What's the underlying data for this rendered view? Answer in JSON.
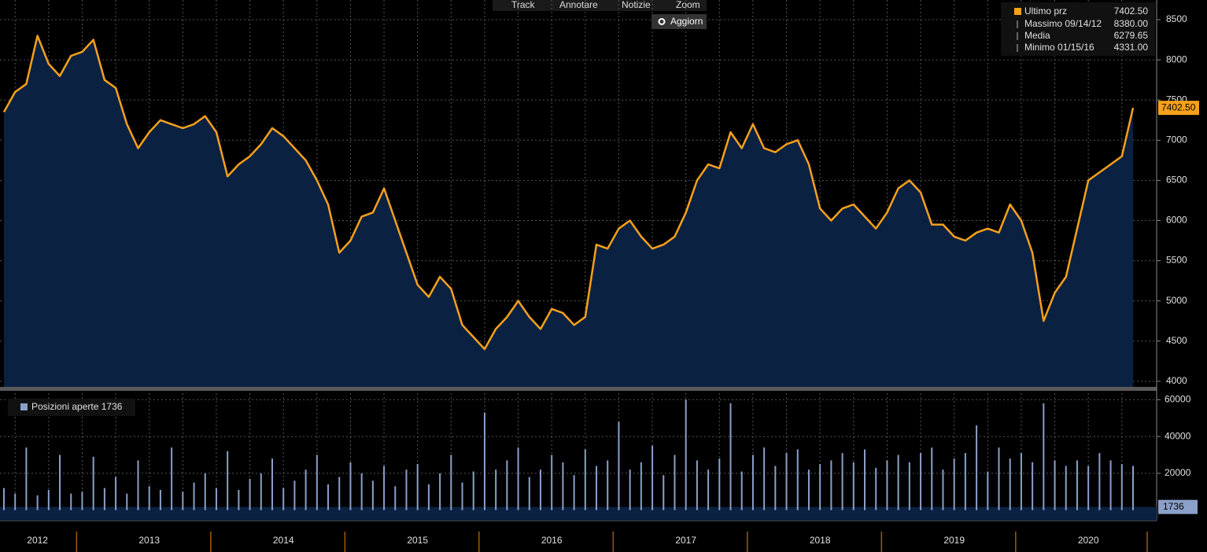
{
  "toolbar": [
    "Track",
    "Annotare",
    "Notizie",
    "Zoom",
    "Aggiorn"
  ],
  "chart_data": [
    {
      "type": "line",
      "categories": [
        null,
        null,
        null,
        "2012",
        null,
        null,
        null,
        null,
        null,
        null,
        null,
        null,
        null,
        "2013",
        null,
        null,
        null,
        null,
        null,
        null,
        null,
        null,
        null,
        null,
        null,
        "2014",
        null,
        null,
        null,
        null,
        null,
        null,
        null,
        null,
        null,
        null,
        null,
        "2015",
        null,
        null,
        null,
        null,
        null,
        null,
        null,
        null,
        null,
        null,
        null,
        "2016",
        null,
        null,
        null,
        null,
        null,
        null,
        null,
        null,
        null,
        null,
        null,
        "2017",
        null,
        null,
        null,
        null,
        null,
        null,
        null,
        null,
        null,
        null,
        null,
        "2018",
        null,
        null,
        null,
        null,
        null,
        null,
        null,
        null,
        null,
        null,
        null,
        "2019",
        null,
        null,
        null,
        null,
        null,
        null,
        null,
        null,
        null,
        null,
        null,
        "2020",
        null,
        null,
        null,
        null
      ],
      "series": [
        {
          "name": "Ultimo prz",
          "color": "#f7a11a",
          "values": [
            7350,
            7600,
            7700,
            8300,
            7950,
            7800,
            8050,
            8100,
            8250,
            7750,
            7650,
            7200,
            6900,
            7100,
            7250,
            7200,
            7150,
            7200,
            7300,
            7100,
            6550,
            6700,
            6800,
            6950,
            7150,
            7050,
            6900,
            6750,
            6500,
            6200,
            5600,
            5750,
            6050,
            6100,
            6400,
            6000,
            5600,
            5200,
            5050,
            5300,
            5150,
            4700,
            4550,
            4400,
            4650,
            4800,
            5000,
            4800,
            4650,
            4900,
            4850,
            4700,
            4800,
            5700,
            5650,
            5900,
            6000,
            5800,
            5650,
            5700,
            5800,
            6100,
            6500,
            6700,
            6650,
            7100,
            6900,
            7200,
            6900,
            6850,
            6950,
            7000,
            6700,
            6150,
            6000,
            6150,
            6200,
            6050,
            5900,
            6100,
            6400,
            6500,
            6350,
            5950,
            5950,
            5800,
            5750,
            5850,
            5900,
            5850,
            6200,
            6000,
            5600,
            4750,
            5100,
            5300,
            5900,
            6500,
            6600,
            6700,
            6800,
            7402.5
          ]
        }
      ],
      "last_label": "7402.50",
      "stats": [
        {
          "name": "Massimo",
          "date": "09/14/12",
          "value_label": "8380.00"
        },
        {
          "name": "Media",
          "value_label": "6279.65"
        },
        {
          "name": "Minimo",
          "date": "01/15/16",
          "value_label": "4331.00"
        }
      ],
      "ylim": [
        3930,
        8745
      ],
      "yticks": [
        4000,
        4500,
        5000,
        5500,
        6000,
        6500,
        7000,
        7500,
        8000,
        8500
      ],
      "grid": true
    },
    {
      "type": "bar",
      "series": [
        {
          "name": "Posizioni aperte",
          "color": "#8aa0c8",
          "values": [
            12000,
            9000,
            34000,
            8000,
            11000,
            30000,
            9000,
            10000,
            29000,
            12000,
            18000,
            9000,
            27000,
            13000,
            11000,
            34000,
            10000,
            15000,
            20000,
            12000,
            32000,
            11000,
            17000,
            20000,
            28000,
            12000,
            16000,
            22000,
            30000,
            14000,
            18000,
            26000,
            20000,
            16000,
            24000,
            13000,
            22000,
            25000,
            14000,
            20000,
            30000,
            15000,
            21000,
            53000,
            22000,
            27000,
            34000,
            18000,
            22000,
            30000,
            26000,
            19000,
            33000,
            24000,
            27000,
            48000,
            22000,
            26000,
            35000,
            19000,
            30000,
            60000,
            27000,
            22000,
            28000,
            58000,
            21000,
            30000,
            34000,
            24000,
            31000,
            33000,
            22000,
            25000,
            27000,
            31000,
            26000,
            33000,
            23000,
            27000,
            30000,
            26000,
            31000,
            34000,
            22000,
            28000,
            31000,
            46000,
            21000,
            34000,
            28000,
            31000,
            26000,
            58000,
            27000,
            24000,
            27000,
            24000,
            31000,
            27000,
            25000,
            24000
          ]
        }
      ],
      "current": 1736,
      "ylim": [
        -5650,
        64800
      ],
      "yticks": [
        20000,
        40000,
        60000
      ],
      "grid": true
    }
  ]
}
